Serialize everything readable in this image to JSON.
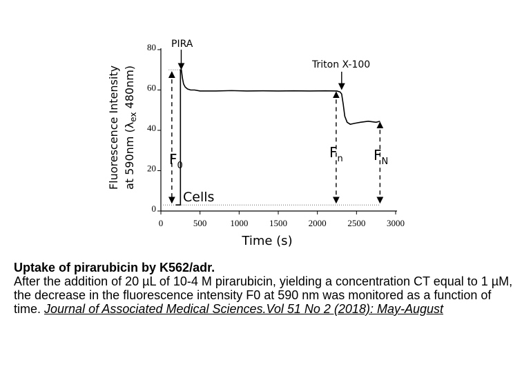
{
  "chart_data": {
    "type": "line",
    "y_label": [
      "Fluorescence Intensity",
      "at 590nm (λ",
      "ex",
      " 480nm)"
    ],
    "x_label": "Time (s)",
    "x": [
      190,
      250,
      250,
      262,
      275,
      290,
      310,
      340,
      380,
      430,
      500,
      700,
      900,
      1100,
      1300,
      1500,
      1700,
      1900,
      2100,
      2250,
      2290,
      2310,
      2330,
      2350,
      2380,
      2420,
      2480,
      2550,
      2650,
      2750,
      2800
    ],
    "series": [
      {
        "color": "#000000",
        "values": [
          3,
          3,
          70,
          70,
          66,
          63,
          61.5,
          60.5,
          60,
          60,
          59.5,
          59.5,
          59.7,
          59.5,
          59.6,
          59.5,
          59.6,
          59.5,
          59.6,
          59.5,
          59,
          58,
          53,
          47,
          44,
          43,
          43.5,
          44,
          44.5,
          44,
          44.5
        ]
      }
    ],
    "xlim": [
      0,
      3000
    ],
    "xticks": [
      0,
      500,
      1000,
      1500,
      2000,
      2500,
      3000
    ],
    "ylim": [
      0,
      80
    ],
    "yticks": [
      0,
      20,
      40,
      60,
      80
    ],
    "annotations": {
      "pira": "PIRA",
      "triton": "Triton X-100",
      "cells": "Cells",
      "f0": [
        "F",
        "0"
      ],
      "fn": [
        "F",
        "n"
      ],
      "fN": [
        "F",
        "N"
      ]
    }
  },
  "caption": {
    "title": "Uptake of pirarubicin by K562/adr.",
    "text": "After the addition of 20 µL of 10-4 M pirarubicin, yielding a concentration CT equal to 1 µM, the decrease in the fluorescence intensity F0 at 590 nm was monitored as a function of time.",
    "link": "Journal of Associated Medical Sciences.Vol 51 No 2 (2018): May-August"
  }
}
